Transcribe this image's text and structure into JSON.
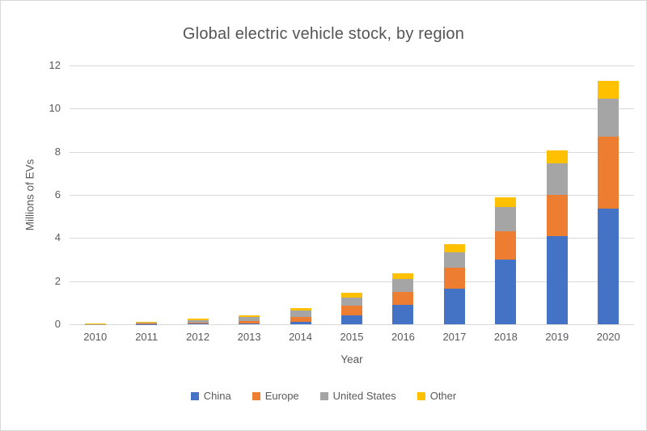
{
  "chart_data": {
    "type": "bar",
    "stacked": true,
    "title": "Global electric vehicle stock, by region",
    "xlabel": "Year",
    "ylabel": "Millions of EVs",
    "ylim": [
      0,
      12
    ],
    "yticks": [
      0,
      2,
      4,
      6,
      8,
      10,
      12
    ],
    "grid": true,
    "legend_position": "bottom",
    "categories": [
      "2010",
      "2011",
      "2012",
      "2013",
      "2014",
      "2015",
      "2016",
      "2017",
      "2018",
      "2019",
      "2020"
    ],
    "series": [
      {
        "name": "China",
        "color": "#4472C4",
        "values": [
          0.0,
          0.01,
          0.02,
          0.05,
          0.1,
          0.4,
          0.9,
          1.65,
          3.0,
          4.1,
          5.35
        ]
      },
      {
        "name": "Europe",
        "color": "#ED7D31",
        "values": [
          0.0,
          0.02,
          0.06,
          0.1,
          0.22,
          0.45,
          0.59,
          0.97,
          1.3,
          1.9,
          3.35
        ]
      },
      {
        "name": "United States",
        "color": "#A5A5A5",
        "values": [
          0.01,
          0.03,
          0.12,
          0.17,
          0.3,
          0.4,
          0.6,
          0.72,
          1.14,
          1.45,
          1.77
        ]
      },
      {
        "name": "Other",
        "color": "#FFC000",
        "values": [
          0.01,
          0.04,
          0.07,
          0.1,
          0.13,
          0.23,
          0.27,
          0.36,
          0.46,
          0.6,
          0.81
        ]
      }
    ]
  },
  "colors": {
    "background": "#FFFFFF",
    "border": "#D9D9D9",
    "gridline": "#D9D9D9",
    "axis_line": "#D9D9D9",
    "text": "#595959"
  }
}
